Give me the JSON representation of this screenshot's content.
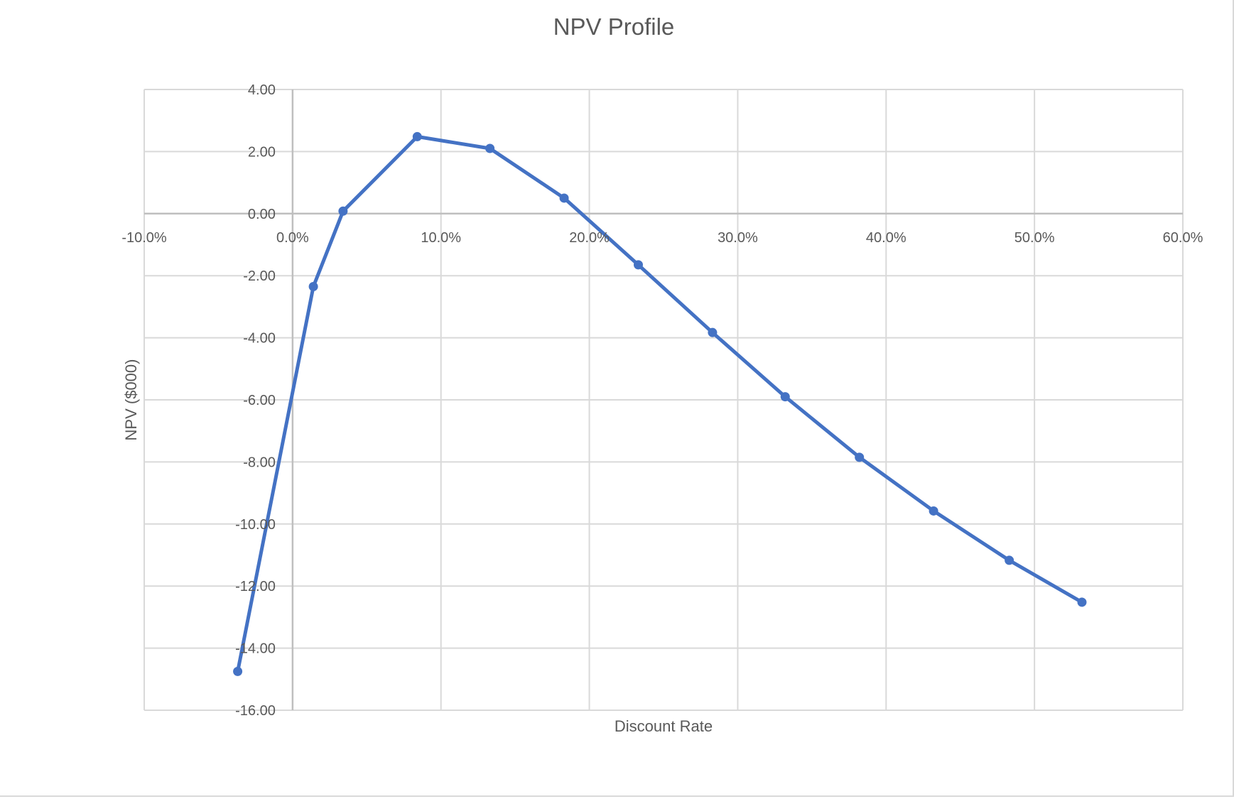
{
  "chart_data": {
    "type": "scatter",
    "mode": "lines+markers",
    "title": "NPV Profile",
    "xlabel": "Discount Rate",
    "ylabel": "NPV ($000)",
    "xlim": [
      -0.1,
      0.6
    ],
    "ylim": [
      -16,
      4
    ],
    "x_ticks": [
      -0.1,
      0.0,
      0.1,
      0.2,
      0.3,
      0.4,
      0.5,
      0.6
    ],
    "x_tick_labels": [
      "-10.0%",
      "0.0%",
      "10.0%",
      "20.0%",
      "30.0%",
      "40.0%",
      "50.0%",
      "60.0%"
    ],
    "y_ticks": [
      4,
      2,
      0,
      -2,
      -4,
      -6,
      -8,
      -10,
      -12,
      -14,
      -16
    ],
    "y_tick_labels": [
      "4.00",
      "2.00",
      "0.00",
      "-2.00",
      "-4.00",
      "-6.00",
      "-8.00",
      "-10.00",
      "-12.00",
      "-14.00",
      "-16.00"
    ],
    "grid": true,
    "legend": "none",
    "series": [
      {
        "color": "#4472c4",
        "points": [
          {
            "x": -0.037,
            "y": -14.75
          },
          {
            "x": 0.014,
            "y": -2.35
          },
          {
            "x": 0.034,
            "y": 0.08
          },
          {
            "x": 0.084,
            "y": 2.48
          },
          {
            "x": 0.133,
            "y": 2.1
          },
          {
            "x": 0.183,
            "y": 0.5
          },
          {
            "x": 0.233,
            "y": -1.65
          },
          {
            "x": 0.283,
            "y": -3.83
          },
          {
            "x": 0.332,
            "y": -5.9
          },
          {
            "x": 0.382,
            "y": -7.85
          },
          {
            "x": 0.432,
            "y": -9.58
          },
          {
            "x": 0.483,
            "y": -11.17
          },
          {
            "x": 0.532,
            "y": -12.52
          }
        ]
      }
    ]
  }
}
